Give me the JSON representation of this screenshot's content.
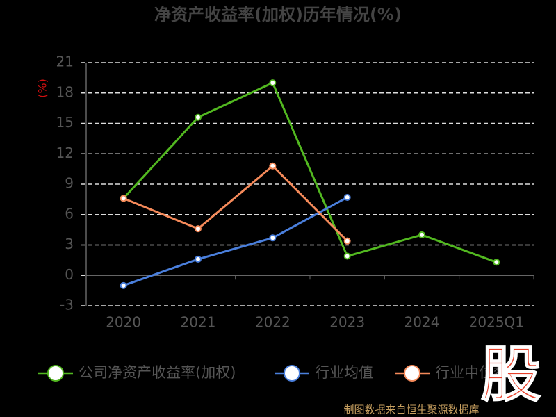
{
  "chart_data": {
    "type": "line",
    "title": "净资产收益率(加权)历年情况(%)",
    "y_label": "(%)",
    "categories": [
      "2020",
      "2021",
      "2022",
      "2023",
      "2024",
      "2025Q1"
    ],
    "series": [
      {
        "name": "公司净资产收益率(加权)",
        "color": "#52b820",
        "values": [
          7.6,
          15.6,
          19.0,
          1.9,
          4.0,
          1.3
        ]
      },
      {
        "name": "行业均值",
        "color": "#4a7fdc",
        "values": [
          -1.0,
          1.6,
          3.7,
          7.7,
          null,
          null
        ]
      },
      {
        "name": "行业中位数",
        "color": "#f58a5a",
        "values": [
          7.6,
          4.6,
          10.8,
          3.4,
          null,
          null
        ]
      }
    ],
    "ylim": [
      -3,
      21
    ],
    "yticks": [
      -3,
      0,
      3,
      6,
      9,
      12,
      15,
      18,
      21
    ],
    "grid": true,
    "logo": "股",
    "source": "制图数据来自恒生聚源数据库"
  }
}
